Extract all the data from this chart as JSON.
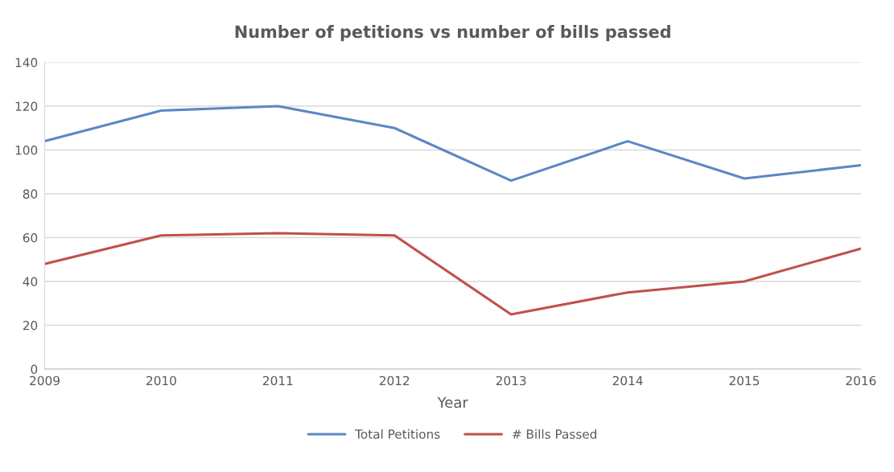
{
  "chart_data": {
    "type": "line",
    "title": "Number of petitions vs number of bills passed",
    "xlabel": "Year",
    "x": [
      2009,
      2010,
      2011,
      2012,
      2013,
      2014,
      2015,
      2016
    ],
    "series": [
      {
        "name": "Total Petitions",
        "color": "#5b87c5",
        "values": [
          104,
          118,
          120,
          110,
          86,
          104,
          87,
          93
        ]
      },
      {
        "name": "# Bills Passed",
        "color": "#c0504d",
        "values": [
          48,
          61,
          62,
          61,
          25,
          35,
          40,
          55
        ]
      }
    ],
    "xlim": [
      2009,
      2016
    ],
    "xticks": [
      2009,
      2010,
      2011,
      2012,
      2013,
      2014,
      2015,
      2016
    ],
    "ylim": [
      0,
      140
    ],
    "yticks": [
      0,
      20,
      40,
      60,
      80,
      100,
      120,
      140
    ],
    "grid": "y",
    "legend": "bottom",
    "marker": "none",
    "line_style": "solid"
  }
}
